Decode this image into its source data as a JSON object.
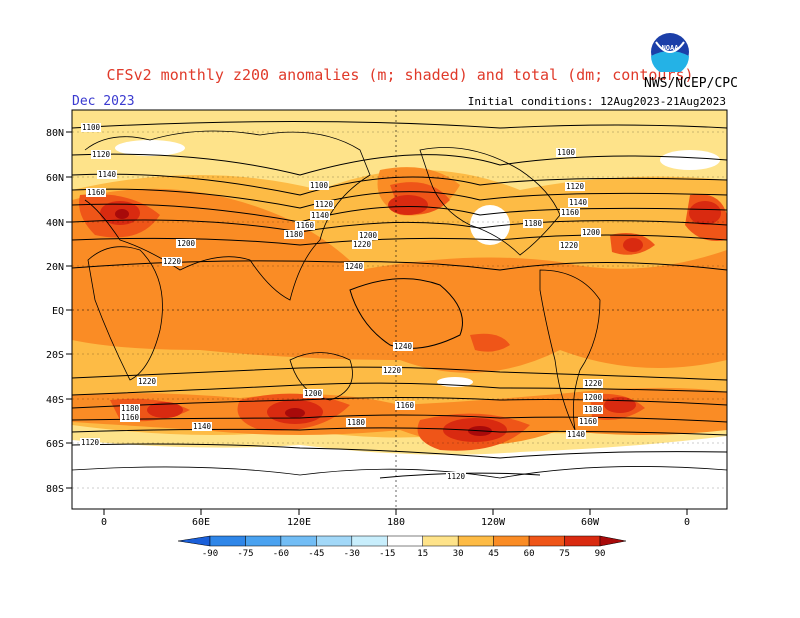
{
  "header": {
    "title": "CFSv2 monthly z200 anomalies (m; shaded) and total (dm; contours)",
    "month": "Dec 2023",
    "initial_conditions": "Initial conditions: 12Aug2023-21Aug2023",
    "agency": "NWS/NCEP/CPC",
    "logo_text": "NOAA"
  },
  "map": {
    "lat_labels": [
      "80N",
      "60N",
      "40N",
      "20N",
      "EQ",
      "20S",
      "40S",
      "60S",
      "80S"
    ],
    "lon_labels": [
      "0",
      "60E",
      "120E",
      "180",
      "120W",
      "60W",
      "0"
    ],
    "contour_labels": [
      "1100",
      "1120",
      "1140",
      "1160",
      "1180",
      "1200",
      "1220",
      "1240"
    ]
  },
  "colorbar": {
    "ticks": [
      "-90",
      "-75",
      "-60",
      "-45",
      "-30",
      "-15",
      "15",
      "30",
      "45",
      "60",
      "75",
      "90"
    ],
    "colors": [
      "#1a5fd9",
      "#2f86e8",
      "#4aa2f0",
      "#72bdf5",
      "#a2d8f8",
      "#c8eefc",
      "#ffffff",
      "#fee38a",
      "#fdbb45",
      "#fa8c25",
      "#ef5518",
      "#d92a10",
      "#a80a0a"
    ]
  }
}
